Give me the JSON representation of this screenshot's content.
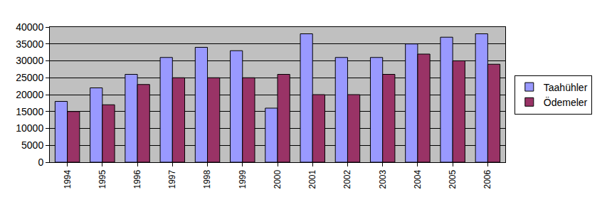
{
  "chart_data": {
    "type": "bar",
    "categories": [
      "1994",
      "1995",
      "1996",
      "1997",
      "1998",
      "1999",
      "2000",
      "2001",
      "2002",
      "2003",
      "2004",
      "2005",
      "2006"
    ],
    "series": [
      {
        "name": "Taahühler",
        "color": "#9999ff",
        "values": [
          18000,
          22000,
          26000,
          31000,
          34000,
          33000,
          16000,
          38000,
          31000,
          31000,
          35000,
          37000,
          38000
        ]
      },
      {
        "name": "Ödemeler",
        "color": "#993366",
        "values": [
          15000,
          17000,
          23000,
          25000,
          25000,
          25000,
          26000,
          20000,
          20000,
          26000,
          32000,
          30000,
          29000
        ]
      }
    ],
    "ylim": [
      0,
      40000
    ],
    "yticks": [
      0,
      5000,
      10000,
      15000,
      20000,
      25000,
      30000,
      35000,
      40000
    ],
    "grid": true,
    "legend": "right"
  }
}
